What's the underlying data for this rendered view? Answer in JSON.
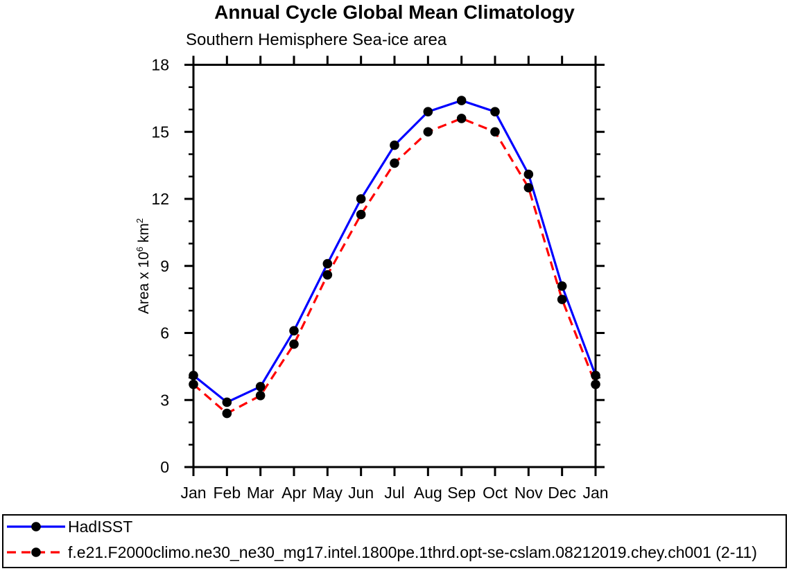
{
  "chart_data": {
    "type": "line",
    "title": "Annual Cycle Global Mean Climatology",
    "subtitle": "Southern Hemisphere Sea-ice area",
    "xlabel": "",
    "ylabel": "Area x 10^6 km^2",
    "ylabel_parts": {
      "base": "Area x 10",
      "exp": "6",
      "unit": " km",
      "unit_exp": "2"
    },
    "x_categories": [
      "Jan",
      "Feb",
      "Mar",
      "Apr",
      "May",
      "Jun",
      "Jul",
      "Aug",
      "Sep",
      "Oct",
      "Nov",
      "Dec",
      "Jan"
    ],
    "ylim": [
      0,
      18
    ],
    "ytick_major": [
      0,
      3,
      6,
      9,
      12,
      15,
      18
    ],
    "ytick_minor_step": 1,
    "grid": false,
    "legend_position": "bottom-left-box",
    "marker": {
      "shape": "circle",
      "color": "#000000"
    },
    "axis_color": "#000000",
    "background_color": "#ffffff",
    "series": [
      {
        "name": "HadISST",
        "color": "#0000ff",
        "line_style": "solid",
        "values": [
          4.1,
          2.9,
          3.6,
          6.1,
          9.1,
          12.0,
          14.4,
          15.9,
          16.4,
          15.9,
          13.1,
          8.1,
          4.1
        ]
      },
      {
        "name": "f.e21.F2000climo.ne30_ne30_mg17.intel.1800pe.1thrd.opt-se-cslam.08212019.chey.ch001 (2-11)",
        "color": "#ff0000",
        "line_style": "dashed",
        "values": [
          3.7,
          2.4,
          3.2,
          5.5,
          8.6,
          11.3,
          13.6,
          15.0,
          15.6,
          15.0,
          12.5,
          7.5,
          3.7
        ]
      }
    ]
  }
}
